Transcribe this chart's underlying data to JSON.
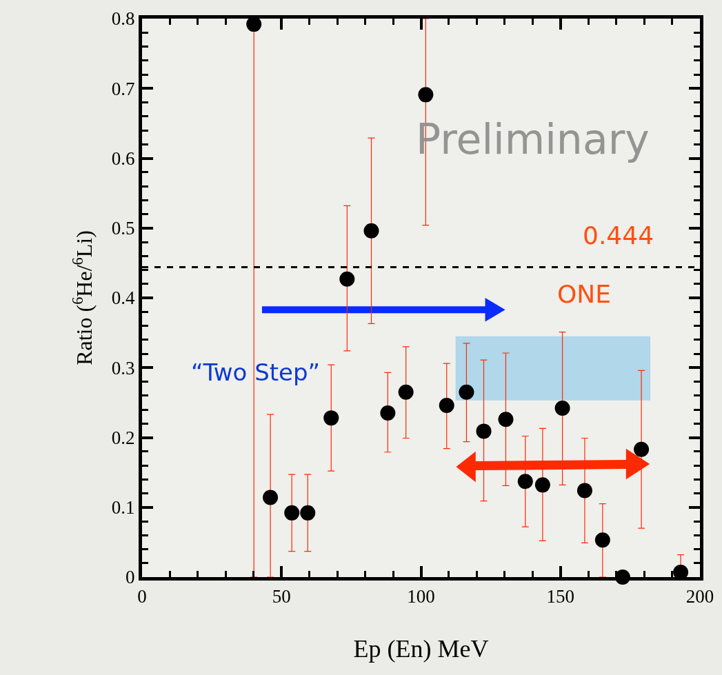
{
  "chart_data": {
    "type": "scatter",
    "xlabel": "Ep (En) MeV",
    "ylabel": "Ratio ($^{6}$He/$^{6}$Li)",
    "x": [
      40.1,
      46.0,
      53.7,
      59.4,
      67.8,
      73.5,
      82.2,
      88.1,
      94.6,
      101.7,
      109.2,
      116.3,
      122.5,
      130.4,
      137.4,
      143.6,
      150.7,
      158.7,
      165.1,
      172.3,
      179.0,
      193.1
    ],
    "series": [
      {
        "color": "#000000",
        "values": [
          0.792,
          0.114,
          0.092,
          0.092,
          0.228,
          0.427,
          0.496,
          0.235,
          0.265,
          0.691,
          0.246,
          0.265,
          0.209,
          0.226,
          0.137,
          0.132,
          0.242,
          0.124,
          0.053,
          0.0,
          0.183,
          0.007
        ],
        "errors": [
          [
            0,
            0.792
          ],
          [
            0,
            0.233
          ],
          [
            0.037,
            0.147
          ],
          [
            0.037,
            0.147
          ],
          [
            0.152,
            0.304
          ],
          [
            0.324,
            0.532
          ],
          [
            0.363,
            0.629
          ],
          [
            0.179,
            0.293
          ],
          [
            0.199,
            0.33
          ],
          [
            0.504,
            0.8
          ],
          [
            0.184,
            0.306
          ],
          [
            0.194,
            0.335
          ],
          [
            0.109,
            0.311
          ],
          [
            0.131,
            0.321
          ],
          [
            0.072,
            0.202
          ],
          [
            0.052,
            0.213
          ],
          [
            0.132,
            0.351
          ],
          [
            0.049,
            0.199
          ],
          [
            0,
            0.105
          ],
          null,
          [
            0.07,
            0.296
          ],
          [
            0.007,
            0.032
          ]
        ]
      }
    ],
    "xlim": [
      0,
      200
    ],
    "xticks": [
      0,
      50,
      100,
      150,
      200
    ],
    "ylim": [
      0,
      0.8
    ],
    "yticks": [
      0,
      0.1,
      0.2,
      0.3,
      0.4,
      0.5,
      0.6,
      0.7,
      0.8
    ],
    "marker": "circle",
    "grid": false,
    "ref_lines": [
      {
        "axis": "y",
        "value": 0.444,
        "label": "0.444",
        "color": "#000000",
        "line_style": "dashed"
      }
    ],
    "bands": [
      {
        "axis": "x",
        "from": 112.4,
        "to": 182.2,
        "color": "#a8d4ea"
      }
    ],
    "annotations": [
      "Preliminary",
      "“Two Step”",
      "ONE"
    ]
  }
}
